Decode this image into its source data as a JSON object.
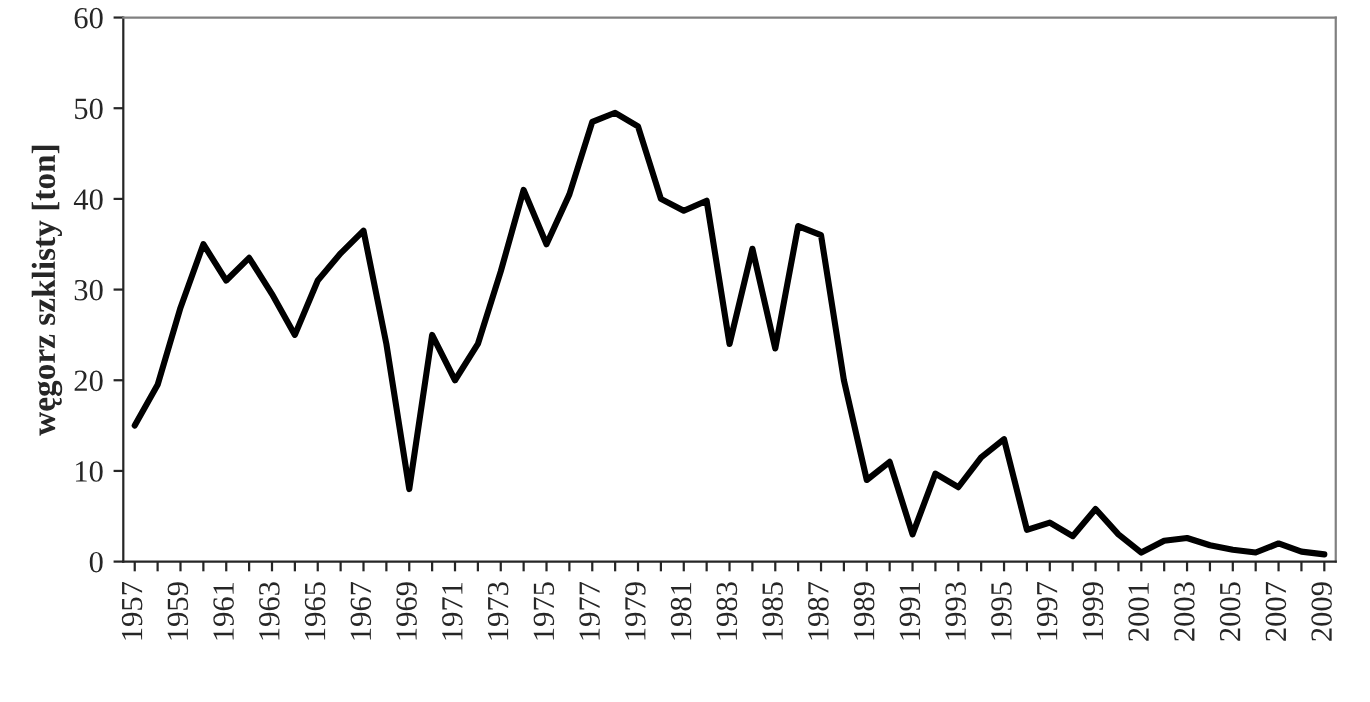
{
  "chart_data": {
    "type": "line",
    "ylabel": "węgorz szklisty [ton]",
    "categories": [
      "1957",
      null,
      "1959",
      null,
      "1961",
      null,
      "1963",
      null,
      "1965",
      null,
      "1967",
      null,
      "1969",
      null,
      "1971",
      null,
      "1973",
      null,
      "1975",
      null,
      "1977",
      null,
      "1979",
      null,
      "1981",
      null,
      "1983",
      null,
      "1985",
      null,
      "1987",
      null,
      "1989",
      null,
      "1991",
      null,
      "1993",
      null,
      "1995",
      null,
      "1997",
      null,
      "1999",
      null,
      "2001",
      null,
      "2003",
      null,
      "2005",
      null,
      "2007",
      null,
      "2009"
    ],
    "series": [
      {
        "color": "#000000",
        "values": [
          15,
          19.5,
          28,
          35,
          31,
          33.5,
          29.5,
          25,
          31,
          34,
          36.5,
          24,
          8,
          25,
          20,
          24,
          32,
          41,
          35,
          40.5,
          48.5,
          49.5,
          48,
          40,
          38.7,
          39.8,
          24,
          34.5,
          23.5,
          37,
          36,
          20,
          9,
          11,
          3,
          9.7,
          8.2,
          11.5,
          13.5,
          3.5,
          4.3,
          2.8,
          5.8,
          3,
          1,
          2.3,
          2.6,
          1.8,
          1.3,
          1,
          2,
          1.1,
          0.8
        ]
      }
    ],
    "ylim": [
      0,
      60
    ],
    "yticks": [
      0,
      10,
      20,
      30,
      40,
      50,
      60
    ],
    "grid": false,
    "legend": false,
    "marker": "none",
    "line_style": "solid"
  }
}
